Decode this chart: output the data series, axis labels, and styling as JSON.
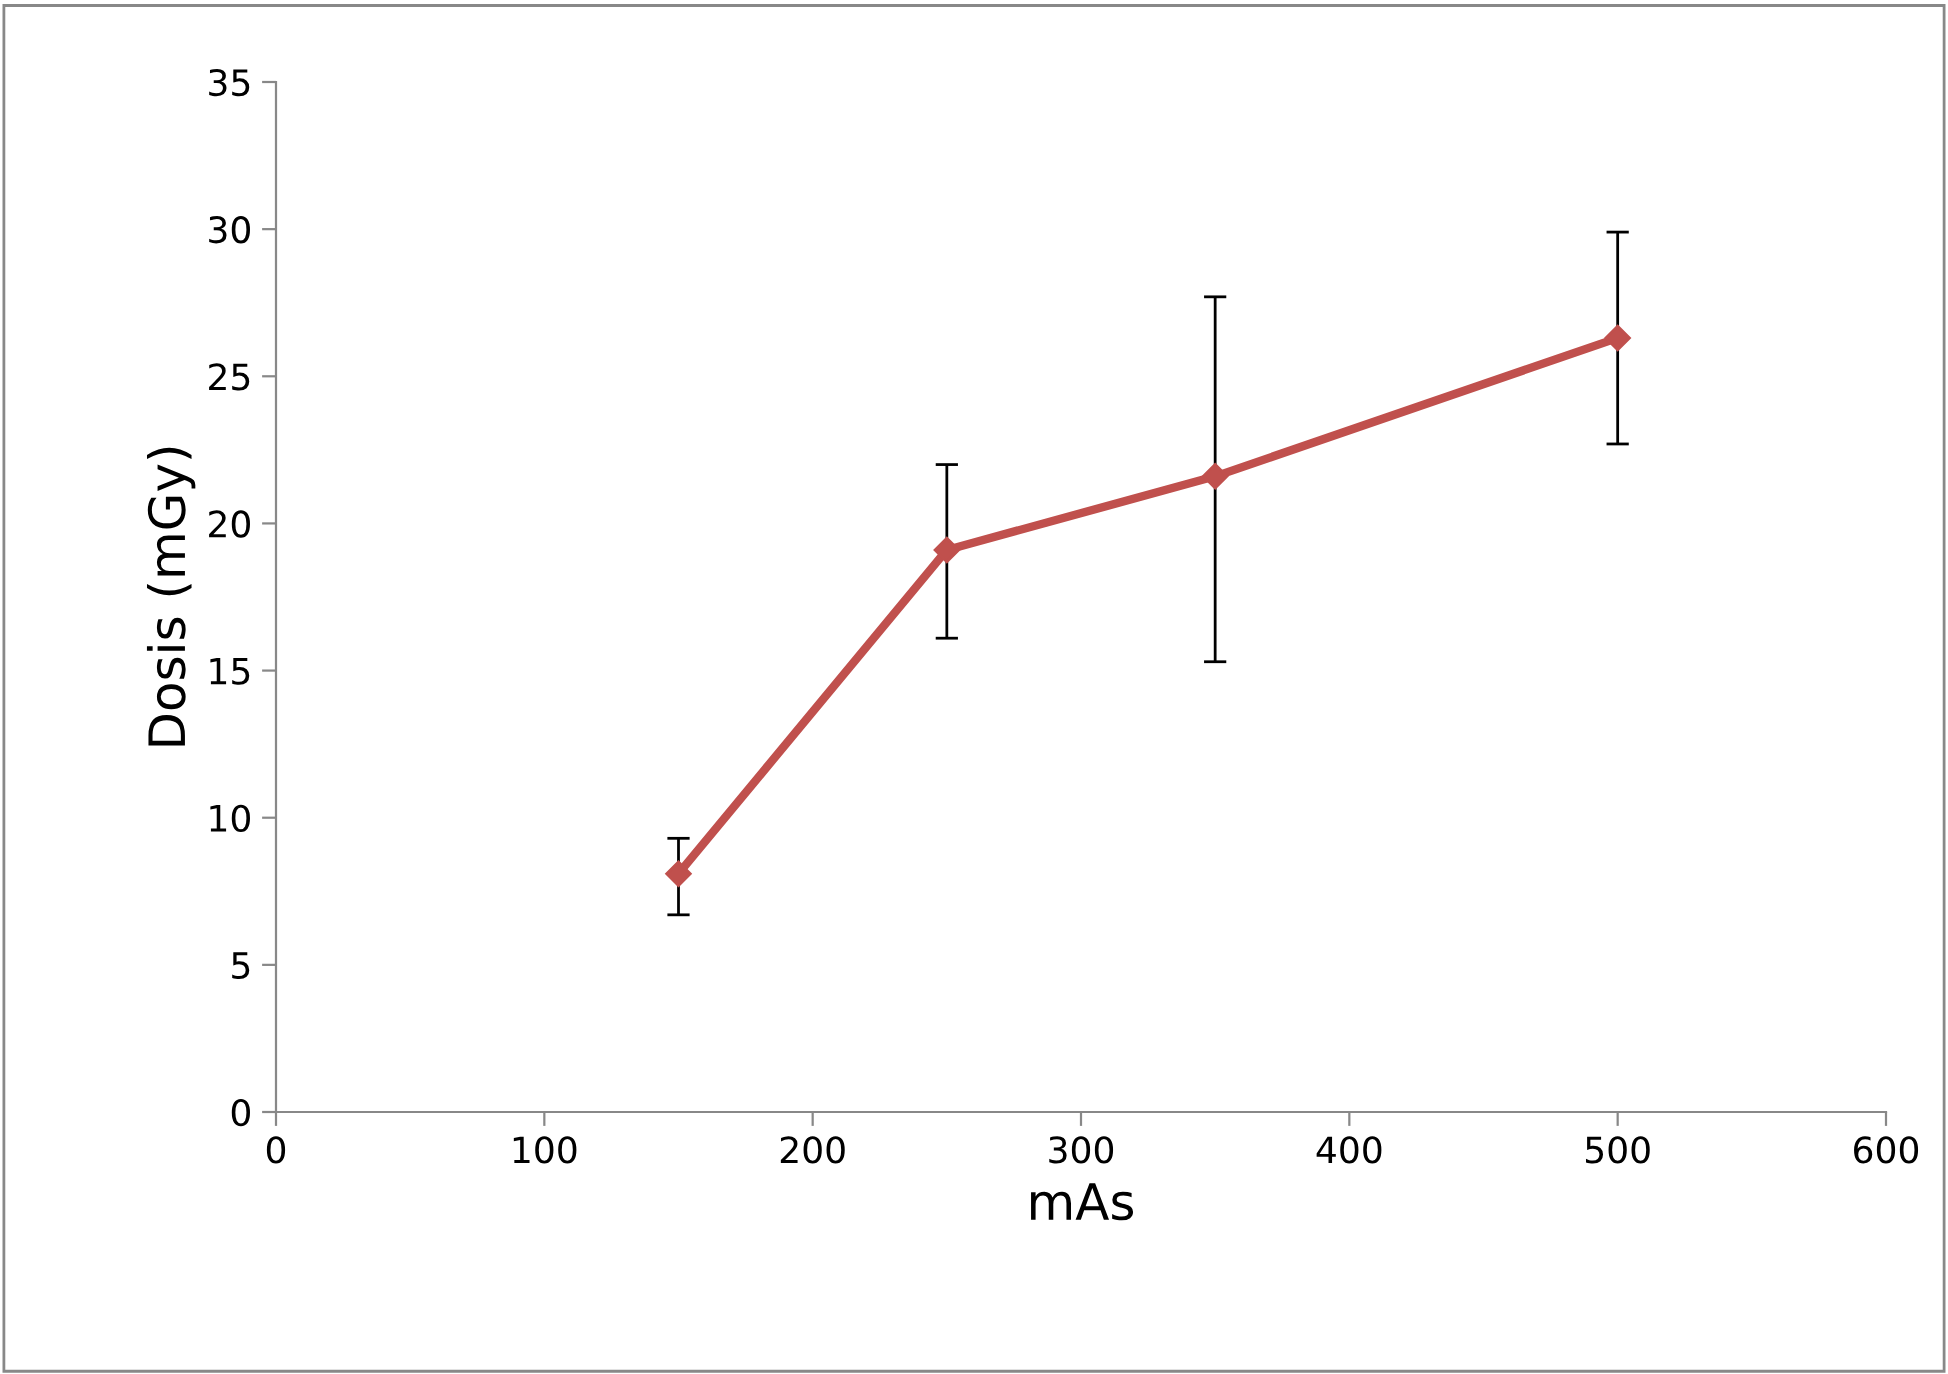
{
  "chart_data": {
    "type": "line",
    "xlabel": "mAs",
    "ylabel": "Dosis (mGy)",
    "x": [
      150,
      250,
      350,
      500
    ],
    "series": [
      {
        "color": "#c0504d",
        "values": [
          8.1,
          19.1,
          21.6,
          26.3
        ],
        "errors": [
          [
            6.7,
            9.3
          ],
          [
            16.1,
            22.0
          ],
          [
            15.3,
            27.7
          ],
          [
            22.7,
            29.9
          ]
        ]
      }
    ],
    "xlim": [
      0,
      600
    ],
    "xticks": [
      0,
      100,
      200,
      300,
      400,
      500,
      600
    ],
    "ylim": [
      0,
      35
    ],
    "yticks": [
      0,
      5,
      10,
      15,
      20,
      25,
      30,
      35
    ],
    "grid": false,
    "legend": false,
    "marker": "diamond",
    "line_style": "solid"
  }
}
